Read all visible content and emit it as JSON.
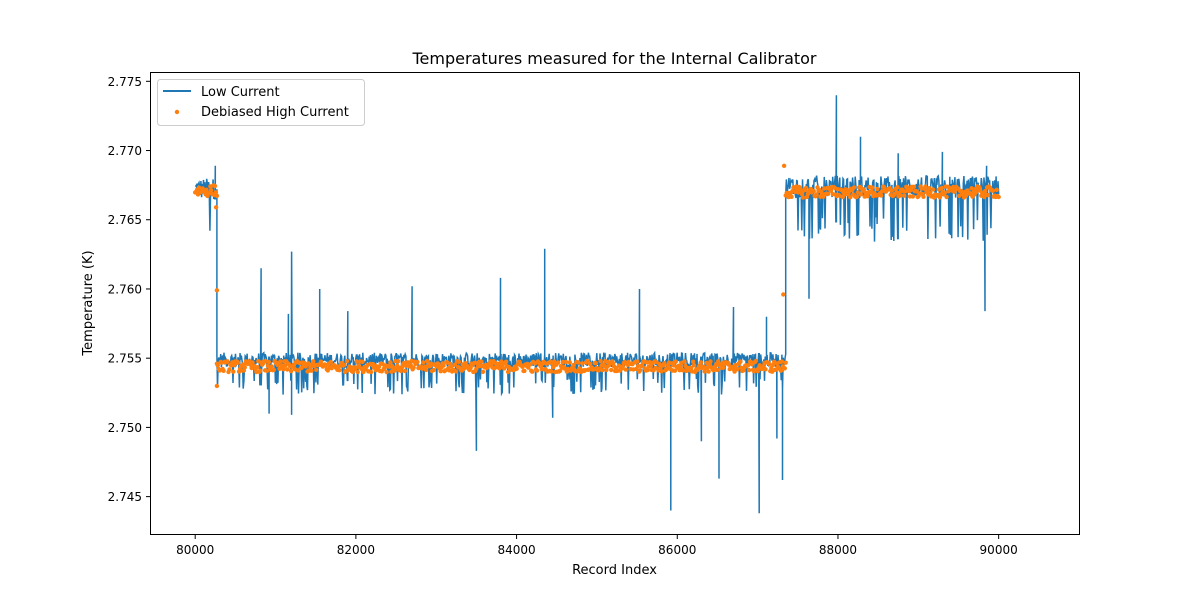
{
  "chart_data": {
    "type": "line",
    "title": "Temperatures measured for the Internal Calibrator",
    "xlabel": "Record Index",
    "ylabel": "Temperature (K)",
    "xlim": [
      79450,
      91000
    ],
    "ylim": [
      2.7423,
      2.7756
    ],
    "xticks": [
      80000,
      82000,
      84000,
      86000,
      88000,
      90000
    ],
    "yticks": [
      2.745,
      2.75,
      2.755,
      2.76,
      2.765,
      2.77,
      2.775
    ],
    "ytick_labels": [
      "2.745",
      "2.750",
      "2.755",
      "2.760",
      "2.765",
      "2.770",
      "2.775"
    ],
    "grid": false,
    "legend_position": "top-left",
    "series": [
      {
        "name": "Low Current",
        "kind": "line",
        "color": "#1f77b4",
        "segments": [
          {
            "x_start": 80000,
            "x_end": 80270,
            "mean": 2.7665,
            "band_low": 2.7652,
            "band_high": 2.768
          },
          {
            "x_start": 80270,
            "x_end": 87350,
            "mean": 2.7544,
            "band_low": 2.7535,
            "band_high": 2.7554
          },
          {
            "x_start": 87350,
            "x_end": 90000,
            "mean": 2.767,
            "band_low": 2.7652,
            "band_high": 2.7682
          }
        ],
        "spikes": [
          {
            "x": 80250,
            "y": 2.7689
          },
          {
            "x": 80820,
            "y": 2.7615
          },
          {
            "x": 81200,
            "y": 2.7627
          },
          {
            "x": 81160,
            "y": 2.7582
          },
          {
            "x": 81550,
            "y": 2.76
          },
          {
            "x": 81900,
            "y": 2.7584
          },
          {
            "x": 82700,
            "y": 2.7602
          },
          {
            "x": 83800,
            "y": 2.7608
          },
          {
            "x": 84350,
            "y": 2.7629
          },
          {
            "x": 85530,
            "y": 2.76
          },
          {
            "x": 86700,
            "y": 2.7587
          },
          {
            "x": 87110,
            "y": 2.758
          },
          {
            "x": 87980,
            "y": 2.774
          },
          {
            "x": 88280,
            "y": 2.771
          },
          {
            "x": 88750,
            "y": 2.7698
          },
          {
            "x": 89300,
            "y": 2.7699
          },
          {
            "x": 89850,
            "y": 2.7689
          },
          {
            "x": 80920,
            "y": 2.751
          },
          {
            "x": 81200,
            "y": 2.7509
          },
          {
            "x": 83500,
            "y": 2.7483
          },
          {
            "x": 84450,
            "y": 2.7507
          },
          {
            "x": 85920,
            "y": 2.744
          },
          {
            "x": 86300,
            "y": 2.749
          },
          {
            "x": 86520,
            "y": 2.7463
          },
          {
            "x": 87020,
            "y": 2.7438
          },
          {
            "x": 87240,
            "y": 2.7492
          },
          {
            "x": 87310,
            "y": 2.7462
          },
          {
            "x": 87640,
            "y": 2.7593
          },
          {
            "x": 89830,
            "y": 2.7584
          }
        ]
      },
      {
        "name": "Debiased High Current",
        "kind": "scatter",
        "color": "#ff7f0e",
        "segments": [
          {
            "x_start": 80000,
            "x_end": 80270,
            "mean": 2.7671,
            "spread": 0.0004
          },
          {
            "x_start": 80270,
            "x_end": 87350,
            "mean": 2.7544,
            "spread": 0.0004
          },
          {
            "x_start": 87350,
            "x_end": 90000,
            "mean": 2.767,
            "spread": 0.0004
          }
        ],
        "outliers": [
          {
            "x": 80260,
            "y": 2.7659
          },
          {
            "x": 80270,
            "y": 2.7599
          },
          {
            "x": 80270,
            "y": 2.753
          },
          {
            "x": 87320,
            "y": 2.7596
          },
          {
            "x": 87330,
            "y": 2.7689
          }
        ]
      }
    ]
  }
}
